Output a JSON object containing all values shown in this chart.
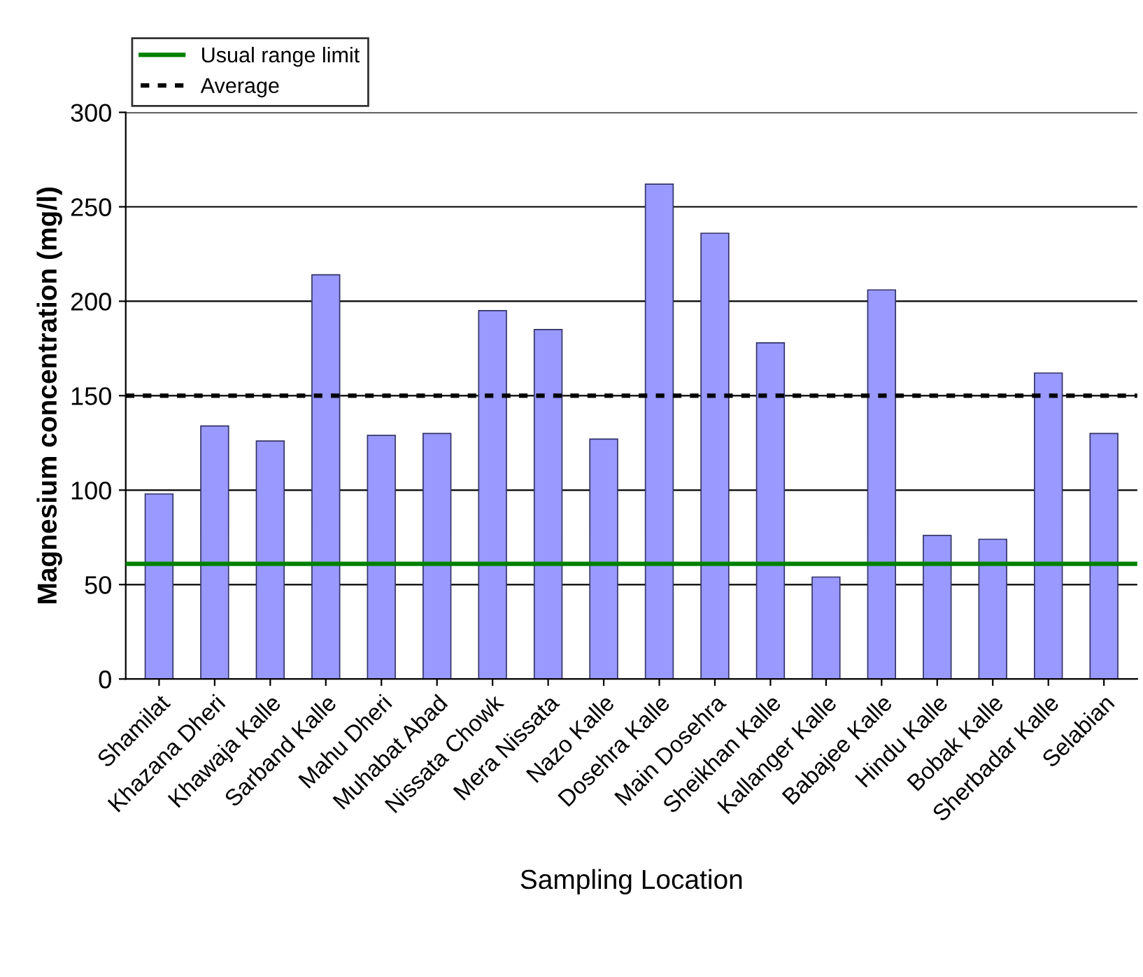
{
  "chart_data": {
    "type": "bar",
    "ylabel": "Magnesium concentration (mg/l)",
    "xlabel": "Sampling Location",
    "categories": [
      "Shamilat",
      "Khazana Dheri",
      "Khawaja Kalle",
      "Sarband Kalle",
      "Mahu Dheri",
      "Muhabat Abad",
      "Nissata Chowk",
      "Mera Nissata",
      "Nazo Kalle",
      "Dosehra Kalle",
      "Main Dosehra",
      "Sheikhan Kalle",
      "Kallanger Kalle",
      "Babajee Kalle",
      "Hindu Kalle",
      "Bobak Kalle",
      "Sherbadar Kalle",
      "Selabian"
    ],
    "values": [
      98,
      134,
      126,
      214,
      129,
      130,
      195,
      185,
      127,
      262,
      236,
      178,
      54,
      206,
      76,
      74,
      162,
      130
    ],
    "color": "#9999ff",
    "ylim": [
      0,
      300
    ],
    "yticks": [
      0,
      50,
      100,
      150,
      200,
      250,
      300
    ],
    "grid": "y",
    "legend": "top left",
    "ref_lines": [
      {
        "axis": "y",
        "value": 61,
        "label": "Usual range limit",
        "color": "#008000",
        "line_style": "solid"
      },
      {
        "axis": "y",
        "value": 150,
        "label": "Average",
        "color": "#000000",
        "line_style": "dotted"
      }
    ]
  }
}
